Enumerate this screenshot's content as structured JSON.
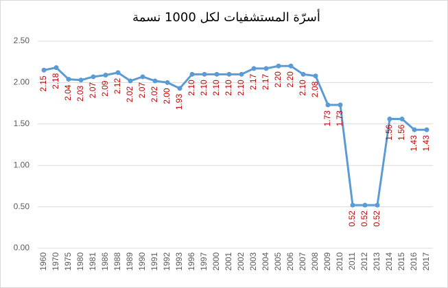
{
  "chart_data": {
    "type": "line",
    "title": "أسرّة المستشفيات لكل 1000 نسمة",
    "categories": [
      "1960",
      "1970",
      "1975",
      "1980",
      "1981",
      "1986",
      "1988",
      "1989",
      "1990",
      "1991",
      "1992",
      "1993",
      "1996",
      "1997",
      "2000",
      "2001",
      "2002",
      "2003",
      "2004",
      "2005",
      "2006",
      "2007",
      "2008",
      "2009",
      "2010",
      "2011",
      "2012",
      "2013",
      "2014",
      "2015",
      "2016",
      "2017"
    ],
    "values": [
      2.15,
      2.18,
      2.04,
      2.03,
      2.07,
      2.09,
      2.12,
      2.02,
      2.07,
      2.02,
      2.0,
      1.93,
      2.1,
      2.1,
      2.1,
      2.1,
      2.1,
      2.17,
      2.17,
      2.2,
      2.2,
      2.1,
      2.08,
      1.73,
      1.73,
      0.52,
      0.52,
      0.52,
      1.56,
      1.56,
      1.43,
      1.43
    ],
    "value_labels": [
      "2.15",
      "2.18",
      "2.04",
      "2.03",
      "2.07",
      "2.09",
      "2.12",
      "2.02",
      "2.07",
      "2.02",
      "2.00",
      "1.93",
      "2.10",
      "2.10",
      "2.10",
      "2.10",
      "2.10",
      "2.17",
      "2.17",
      "2.20",
      "2.20",
      "2.10",
      "2.08",
      "1.73",
      "1.73",
      "0.52",
      "0.52",
      "0.52",
      "1.56",
      "1.56",
      "1.43",
      "1.43"
    ],
    "color": "#5b9bd5",
    "label_color": "#c00000",
    "ylim": [
      0,
      2.5
    ],
    "yticks": [
      {
        "value": 0,
        "label": "0.00"
      },
      {
        "value": 0.5,
        "label": "0.50"
      },
      {
        "value": 1,
        "label": "1.00"
      },
      {
        "value": 1.5,
        "label": "1.50"
      },
      {
        "value": 2,
        "label": "2.00"
      },
      {
        "value": 2.5,
        "label": "2.50"
      }
    ],
    "grid": true
  }
}
